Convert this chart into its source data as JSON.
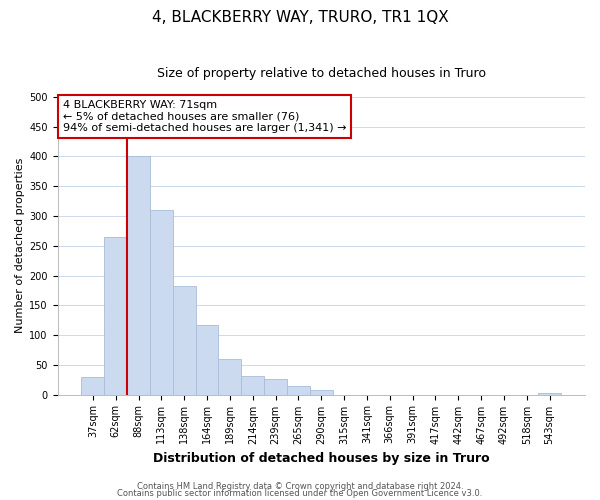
{
  "title": "4, BLACKBERRY WAY, TRURO, TR1 1QX",
  "subtitle": "Size of property relative to detached houses in Truro",
  "xlabel": "Distribution of detached houses by size in Truro",
  "ylabel": "Number of detached properties",
  "bar_labels": [
    "37sqm",
    "62sqm",
    "88sqm",
    "113sqm",
    "138sqm",
    "164sqm",
    "189sqm",
    "214sqm",
    "239sqm",
    "265sqm",
    "290sqm",
    "315sqm",
    "341sqm",
    "366sqm",
    "391sqm",
    "417sqm",
    "442sqm",
    "467sqm",
    "492sqm",
    "518sqm",
    "543sqm"
  ],
  "bar_heights": [
    30,
    265,
    400,
    310,
    182,
    117,
    59,
    32,
    26,
    15,
    7,
    0,
    0,
    0,
    0,
    0,
    0,
    0,
    0,
    0,
    2
  ],
  "bar_color": "#ccdaf0",
  "bar_edge_color": "#a8bcd8",
  "vline_x_idx": 1.5,
  "vline_color": "#cc0000",
  "annotation_line1": "4 BLACKBERRY WAY: 71sqm",
  "annotation_line2": "← 5% of detached houses are smaller (76)",
  "annotation_line3": "94% of semi-detached houses are larger (1,341) →",
  "annotation_box_color": "#ffffff",
  "annotation_box_edge": "#cc0000",
  "ylim": [
    0,
    500
  ],
  "yticks": [
    0,
    50,
    100,
    150,
    200,
    250,
    300,
    350,
    400,
    450,
    500
  ],
  "footer_line1": "Contains HM Land Registry data © Crown copyright and database right 2024.",
  "footer_line2": "Contains public sector information licensed under the Open Government Licence v3.0.",
  "title_fontsize": 11,
  "subtitle_fontsize": 9,
  "xlabel_fontsize": 9,
  "ylabel_fontsize": 8,
  "tick_fontsize": 7,
  "annotation_fontsize": 8,
  "footer_fontsize": 6
}
